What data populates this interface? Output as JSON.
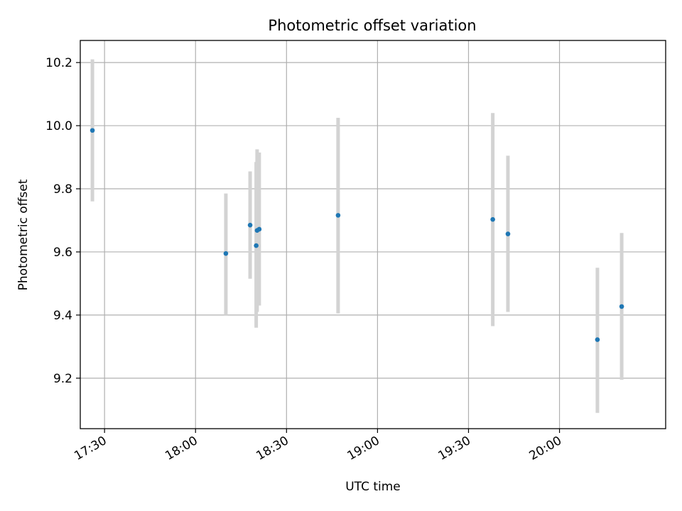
{
  "chart_data": {
    "type": "scatter",
    "title": "Photometric offset variation",
    "xlabel": "UTC time",
    "ylabel": "Photometric offset",
    "x_is_time": true,
    "xlim": [
      "17:22",
      "20:35"
    ],
    "ylim": [
      9.04,
      10.27
    ],
    "x_ticks": [
      "17:30",
      "18:00",
      "18:30",
      "19:00",
      "19:30",
      "20:00"
    ],
    "y_ticks": [
      9.2,
      9.4,
      9.6,
      9.8,
      10.0,
      10.2
    ],
    "grid": true,
    "colors": {
      "point": "#1f77b4",
      "errorbar": "#d3d3d3",
      "grid": "#b0b0b0"
    },
    "points": [
      {
        "x": "17:26",
        "y": 9.985,
        "ylow": 9.76,
        "yhigh": 10.21
      },
      {
        "x": "18:10",
        "y": 9.595,
        "ylow": 9.4,
        "yhigh": 9.785
      },
      {
        "x": "18:18",
        "y": 9.685,
        "ylow": 9.515,
        "yhigh": 9.855
      },
      {
        "x": "18:20",
        "y": 9.62,
        "ylow": 9.36,
        "yhigh": 9.885
      },
      {
        "x": "18:20.3",
        "y": 9.668,
        "ylow": 9.41,
        "yhigh": 9.925
      },
      {
        "x": "18:21",
        "y": 9.672,
        "ylow": 9.43,
        "yhigh": 9.915
      },
      {
        "x": "18:47",
        "y": 9.716,
        "ylow": 9.405,
        "yhigh": 10.025
      },
      {
        "x": "19:38",
        "y": 9.703,
        "ylow": 9.365,
        "yhigh": 10.04
      },
      {
        "x": "19:43",
        "y": 9.657,
        "ylow": 9.41,
        "yhigh": 9.905
      },
      {
        "x": "20:12.5",
        "y": 9.322,
        "ylow": 9.09,
        "yhigh": 9.55
      },
      {
        "x": "20:20.5",
        "y": 9.427,
        "ylow": 9.195,
        "yhigh": 9.66
      }
    ]
  }
}
